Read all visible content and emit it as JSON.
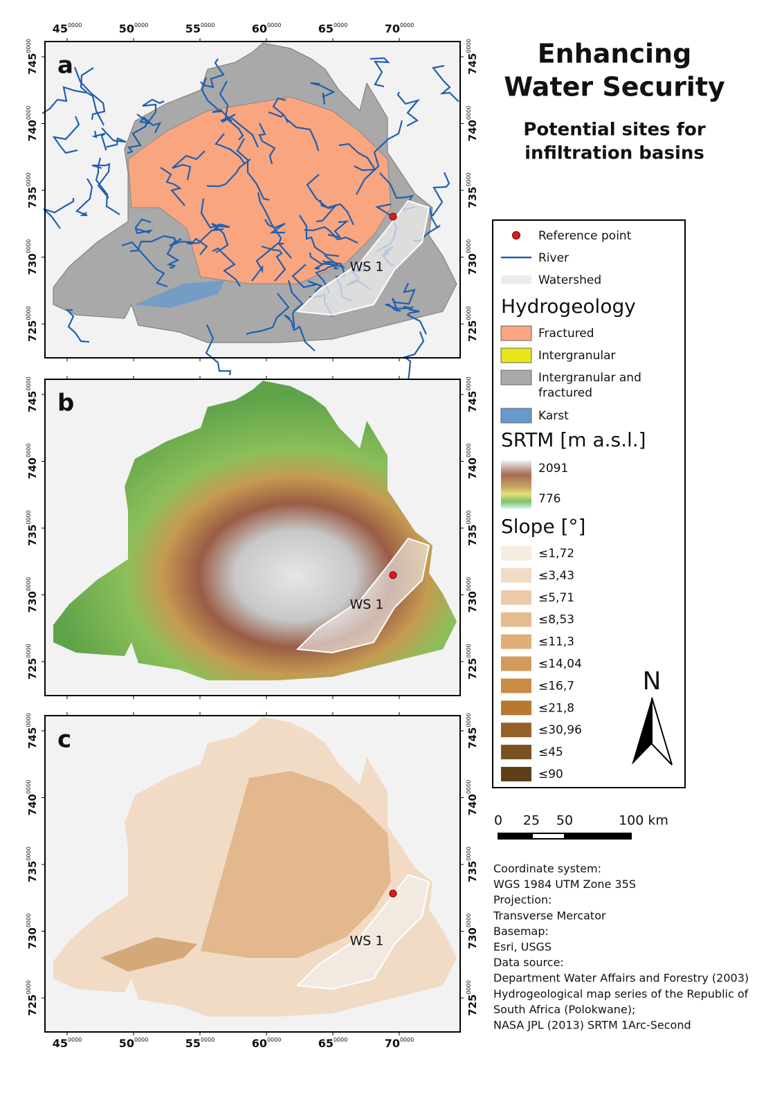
{
  "header": {
    "title_lines": [
      "Enhancing",
      "Water Security"
    ],
    "subtitle_lines": [
      "Potential sites for",
      "infiltration basins"
    ]
  },
  "panels": [
    {
      "label": "a",
      "ws_label": "WS 1"
    },
    {
      "label": "b",
      "ws_label": "WS 1"
    },
    {
      "label": "c",
      "ws_label": "WS 1"
    }
  ],
  "axes": {
    "x_ticks": [
      {
        "main": "45",
        "sup": "0000"
      },
      {
        "main": "50",
        "sup": "0000"
      },
      {
        "main": "55",
        "sup": "0000"
      },
      {
        "main": "60",
        "sup": "0000"
      },
      {
        "main": "65",
        "sup": "0000"
      },
      {
        "main": "70",
        "sup": "0000"
      }
    ],
    "y_ticks": [
      {
        "main": "745",
        "sup": "0000"
      },
      {
        "main": "740",
        "sup": "0000"
      },
      {
        "main": "735",
        "sup": "0000"
      },
      {
        "main": "730",
        "sup": "0000"
      },
      {
        "main": "725",
        "sup": "0000"
      }
    ]
  },
  "legend": {
    "items": [
      {
        "label": "Reference point",
        "color": "#e31a1c"
      },
      {
        "label": "River",
        "color": "#1f5fae"
      },
      {
        "label": "Watershed",
        "color": "#ececec"
      }
    ],
    "hydrogeology": {
      "title": "Hydrogeology",
      "classes": [
        {
          "lines": [
            "Fractured"
          ],
          "color": "#f9a57f"
        },
        {
          "lines": [
            "Intergranular"
          ],
          "color": "#e6e619"
        },
        {
          "lines": [
            "Intergranular and",
            "fractured"
          ],
          "color": "#a9a9a9"
        },
        {
          "lines": [
            "Karst"
          ],
          "color": "#6699cc"
        }
      ]
    },
    "srtm": {
      "title": "SRTM [m a.s.l.]",
      "max": "2091",
      "min": "776"
    },
    "slope": {
      "title": "Slope [°]",
      "classes": [
        {
          "label": "≤1,72",
          "color": "#f7ece2"
        },
        {
          "label": "≤3,43",
          "color": "#f1dbc5"
        },
        {
          "label": "≤5,71",
          "color": "#eacaa8"
        },
        {
          "label": "≤8,53",
          "color": "#e5bc8f"
        },
        {
          "label": "≤11,3",
          "color": "#dfae79"
        },
        {
          "label": "≤14,04",
          "color": "#d59b5d"
        },
        {
          "label": "≤16,7",
          "color": "#c98b46"
        },
        {
          "label": "≤21,8",
          "color": "#b77830"
        },
        {
          "label": "≤30,96",
          "color": "#956128"
        },
        {
          "label": "≤45",
          "color": "#7a5222"
        },
        {
          "label": "≤90",
          "color": "#5f3f1a"
        }
      ]
    }
  },
  "north": "N",
  "scale": {
    "labels": [
      "0",
      "25",
      "50",
      "100 km"
    ]
  },
  "notes": [
    "Coordinate system:",
    "WGS 1984 UTM Zone 35S",
    "Projection:",
    "Transverse Mercator",
    "Basemap:",
    "Esri, USGS",
    "Data source:",
    "Department Water Affairs and Forestry (2003)",
    "Hydrogeological map series of the Republic of",
    "South Africa (Polokwane);",
    "NASA JPL (2013) SRTM 1Arc-Second"
  ]
}
